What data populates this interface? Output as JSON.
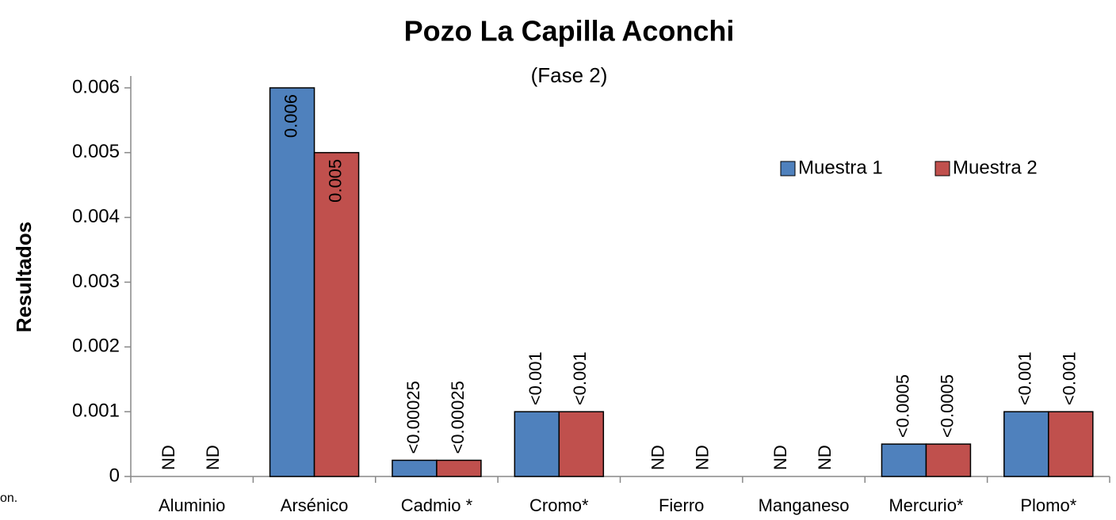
{
  "chart_data": {
    "type": "bar",
    "title": "Pozo La Capilla Aconchi",
    "subtitle": "(Fase 2)",
    "y_label": "Resultados",
    "annotation": "on.",
    "categories": [
      "Aluminio",
      "Arsénico",
      "Cadmio *",
      "Cromo*",
      "Fierro",
      "Manganeso",
      "Mercurio*",
      "Plomo*"
    ],
    "series": [
      {
        "name": "Muestra 1",
        "color": "#4f81bd",
        "values": [
          null,
          0.006,
          0.00025,
          0.001,
          null,
          null,
          0.0005,
          0.001
        ],
        "value_labels": [
          "ND",
          "0.006",
          "<0.00025",
          "<0.001",
          "ND",
          "ND",
          "<0.0005",
          "<0.001"
        ]
      },
      {
        "name": "Muestra 2",
        "color": "#c0504d",
        "values": [
          null,
          0.005,
          0.00025,
          0.001,
          null,
          null,
          0.0005,
          0.001
        ],
        "value_labels": [
          "ND",
          "0.005",
          "<0.00025",
          "<0.001",
          "ND",
          "ND",
          "<0.0005",
          "<0.001"
        ]
      }
    ],
    "ylim": [
      0,
      0.006
    ],
    "yticks": [
      0,
      0.001,
      0.002,
      0.003,
      0.004,
      0.005,
      0.006
    ],
    "legend": "top-right"
  }
}
